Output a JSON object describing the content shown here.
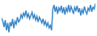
{
  "chart_data": {
    "type": "line",
    "x": [
      1,
      2,
      3,
      4,
      5,
      6,
      7,
      8,
      9,
      10,
      11,
      12,
      13,
      14,
      15,
      16,
      17,
      18,
      19,
      20,
      21,
      22,
      23,
      24,
      25,
      26,
      27,
      28,
      29,
      30,
      31,
      32,
      33,
      34,
      35,
      36,
      37,
      38,
      39,
      40,
      41,
      42,
      43,
      44,
      45,
      46,
      47,
      48,
      49,
      50,
      51,
      52,
      53,
      54,
      55,
      56,
      57,
      58,
      59,
      60,
      61,
      62,
      63,
      64,
      65,
      66,
      67,
      68,
      69,
      70,
      71,
      72,
      73,
      74,
      75,
      76,
      77,
      78
    ],
    "values": [
      60,
      52,
      38,
      55,
      30,
      48,
      25,
      50,
      40,
      58,
      35,
      52,
      45,
      62,
      50,
      55,
      68,
      60,
      72,
      65,
      78,
      62,
      70,
      58,
      66,
      74,
      60,
      68,
      55,
      64,
      50,
      62,
      56,
      48,
      58,
      44,
      52,
      40,
      48,
      36,
      42,
      30,
      80,
      92,
      75,
      88,
      70,
      85,
      78,
      90,
      72,
      86,
      68,
      84,
      76,
      92,
      74,
      88,
      80,
      70,
      86,
      78,
      90,
      74,
      84,
      66,
      80,
      72,
      88,
      76,
      70,
      84,
      78,
      92,
      75,
      86,
      82,
      95
    ],
    "xlim": [
      1,
      78
    ],
    "ylim": [
      20,
      100
    ],
    "color": "#3a87c8",
    "tick_labels": false
  }
}
